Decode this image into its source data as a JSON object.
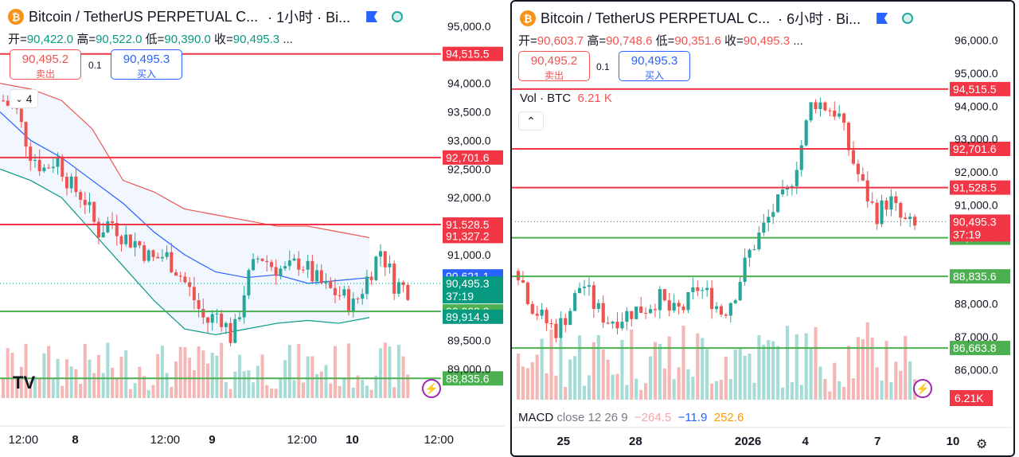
{
  "left": {
    "title": "Bitcoin / TetherUS PERPETUAL C...",
    "interval": "· 1小时 · Bi...",
    "ohlc": {
      "open_label": "开=",
      "open": "90,422.0",
      "high_label": "高=",
      "high": "90,522.0",
      "low_label": "低=",
      "low": "90,390.0",
      "close_label": "收=",
      "close": "90,495.3",
      "more": "..."
    },
    "sell": {
      "price": "90,495.2",
      "label": "卖出"
    },
    "buy": {
      "price": "90,495.3",
      "label": "买入"
    },
    "spread": "0.1",
    "indicator_count": "4",
    "logo": "TV"
  },
  "right": {
    "title": "Bitcoin / TetherUS PERPETUAL C...",
    "interval": "· 6小时 · Bi...",
    "ohlc": {
      "open_label": "开=",
      "open": "90,603.7",
      "high_label": "高=",
      "high": "90,748.6",
      "low_label": "低=",
      "low": "90,351.6",
      "close_label": "收=",
      "close": "90,495.3",
      "more": "..."
    },
    "sell": {
      "price": "90,495.2",
      "label": "卖出"
    },
    "buy": {
      "price": "90,495.3",
      "label": "买入"
    },
    "spread": "0.1",
    "vol": {
      "label": "Vol · BTC",
      "value": "6.21 K"
    },
    "macd": {
      "label": "MACD",
      "params": "close 12 26 9",
      "hist": "−264.5",
      "macd": "−11.9",
      "signal": "252.6"
    }
  },
  "colors": {
    "up": "#26a69a",
    "down": "#ef5350",
    "red_line": "#f23645",
    "green_line": "#4caf50",
    "bb_mid": "#2962ff"
  },
  "icons": {
    "coin": "bitcoin-icon",
    "flag": "flag-icon",
    "circle": "circle-flag-icon",
    "bolt": "lightning-icon",
    "settings": "settings-icon",
    "chevron": "chevron-up-icon"
  },
  "chart_data": [
    {
      "type": "candlestick",
      "title": "Bitcoin / TetherUS PERPETUAL C... · 1小时",
      "y_ticks": [
        95000,
        94000,
        93500,
        93000,
        92500,
        92000,
        91000,
        89500,
        89000
      ],
      "y_tick_labels": [
        "95,000.0",
        "94,000.0",
        "93,500.0",
        "93,000.0",
        "92,500.0",
        "92,000.0",
        "91,000.0",
        "89,500.0",
        "89,000.0"
      ],
      "x_ticks": [
        "12:00",
        "8",
        "12:00",
        "9",
        "12:00",
        "10",
        "12:00"
      ],
      "x_tick_frac": [
        0.04,
        0.17,
        0.33,
        0.45,
        0.61,
        0.73,
        0.89
      ],
      "ylim": [
        88700,
        95250
      ],
      "horizontal_lines": [
        {
          "price": 94515.5,
          "label": "94,515.5",
          "color": "red"
        },
        {
          "price": 92701.6,
          "label": "92,701.6",
          "color": "red"
        },
        {
          "price": 91528.5,
          "label": "91,528.5",
          "color": "red"
        },
        {
          "price": 90008.2,
          "label": "90,008.2",
          "color": "green"
        },
        {
          "price": 88835.6,
          "label": "88,835.6",
          "color": "green"
        }
      ],
      "price_tags": [
        {
          "price": 91327.2,
          "label": "91,327.2",
          "color": "red"
        },
        {
          "price": 90621.1,
          "label": "90,621.1",
          "color": "blue"
        },
        {
          "price": 90495.3,
          "label": "90,495.3",
          "sub": "37:19",
          "color": "teal"
        },
        {
          "price": 89914.9,
          "label": "89,914.9",
          "color": "teal"
        }
      ],
      "last_price": 90495.3,
      "candle_count": 90,
      "price_path": [
        93700,
        93500,
        92800,
        92500,
        92700,
        92200,
        92000,
        91400,
        91600,
        91300,
        91200,
        90900,
        91000,
        90700,
        90300,
        89800,
        90000,
        89500,
        90500,
        91000,
        90800,
        90700,
        90900,
        90600,
        90400,
        90300,
        90100,
        90600,
        91100,
        90500,
        90400
      ],
      "bb_upper": [
        94000,
        93900,
        93700,
        93200,
        92300,
        92100,
        91800,
        91700,
        91600,
        91500,
        91500,
        91400,
        91300
      ],
      "bb_mid": [
        93500,
        93000,
        92700,
        92300,
        91900,
        91400,
        91000,
        90700,
        90600,
        90650,
        90500,
        90550,
        90600
      ],
      "bb_lower": [
        92500,
        92300,
        92000,
        91400,
        90800,
        90200,
        89700,
        89600,
        89700,
        89800,
        89850,
        89800,
        89900
      ]
    },
    {
      "type": "candlestick",
      "title": "Bitcoin / TetherUS PERPETUAL C... · 6小时",
      "y_ticks": [
        96000,
        95000,
        94000,
        93000,
        92000,
        91000,
        88000,
        87000,
        86000
      ],
      "y_tick_labels": [
        "96,000.0",
        "95,000.0",
        "94,000.0",
        "93,000.0",
        "92,000.0",
        "91,000.0",
        "88,000.0",
        "87,000.0",
        "86,000.0"
      ],
      "x_ticks": [
        "25",
        "28",
        "2026",
        "4",
        "7",
        "10"
      ],
      "x_tick_frac": [
        0.11,
        0.26,
        0.48,
        0.62,
        0.77,
        0.92
      ],
      "ylim": [
        85700,
        96300
      ],
      "horizontal_lines": [
        {
          "price": 94515.5,
          "label": "94,515.5",
          "color": "red"
        },
        {
          "price": 92701.6,
          "label": "92,701.6",
          "color": "red"
        },
        {
          "price": 91528.5,
          "label": "91,528.5",
          "color": "red"
        },
        {
          "price": 90008.2,
          "label": "90,008.2",
          "color": "green"
        },
        {
          "price": 88835.6,
          "label": "88,835.6",
          "color": "green"
        },
        {
          "price": 86663.8,
          "label": "86,663.8",
          "color": "green"
        }
      ],
      "price_tags": [
        {
          "price": 90495.3,
          "label": "90,495.3",
          "sub": "37:19",
          "color": "red"
        }
      ],
      "volume_tag": "6.21K",
      "last_price": 90495.3,
      "candle_count": 85,
      "price_path": [
        89000,
        88000,
        87500,
        87200,
        87800,
        88700,
        87900,
        87500,
        87600,
        87800,
        87900,
        88200,
        87700,
        87900,
        88500,
        88200,
        87700,
        88400,
        89500,
        90200,
        90900,
        91300,
        92600,
        94200,
        94000,
        93800,
        92500,
        91500,
        90700,
        91200,
        90500,
        90300
      ]
    }
  ]
}
